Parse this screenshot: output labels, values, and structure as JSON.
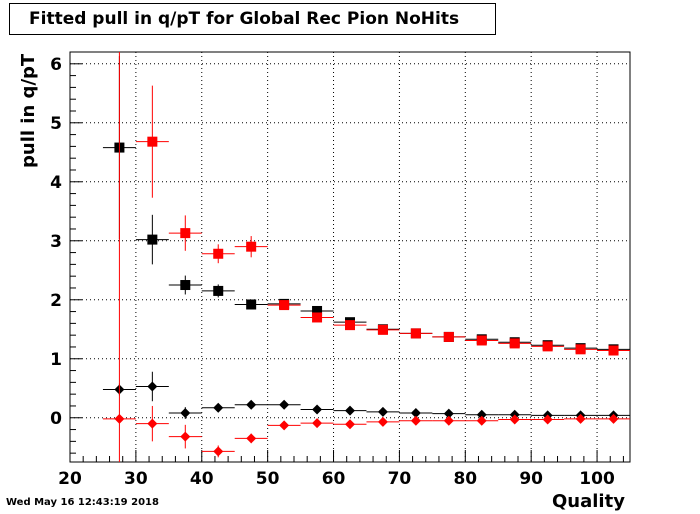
{
  "stamp": "Wed May 16 12:43:19 2018",
  "chart_data": {
    "type": "scatter",
    "title": "Fitted pull in q/pT for Global Rec Pion NoHits",
    "xlabel": "Quality",
    "ylabel": "pull in q/pT",
    "xlim": [
      20,
      105
    ],
    "ylim": [
      -0.75,
      6.2
    ],
    "x_ticks": [
      20,
      30,
      40,
      50,
      60,
      70,
      80,
      90,
      100
    ],
    "y_ticks": [
      0,
      1,
      2,
      3,
      4,
      5,
      6
    ],
    "grid": true,
    "bin_half_width": 2.5,
    "series": [
      {
        "marker": "square",
        "color": "#000000",
        "x": [
          27.5,
          32.5,
          37.5,
          42.5,
          47.5,
          52.5,
          57.5,
          62.5,
          67.5,
          72.5,
          77.5,
          82.5,
          87.5,
          92.5,
          97.5,
          102.5
        ],
        "y": [
          4.58,
          3.02,
          2.25,
          2.15,
          1.92,
          1.93,
          1.81,
          1.62,
          1.5,
          1.43,
          1.37,
          1.33,
          1.28,
          1.23,
          1.18,
          1.16
        ],
        "err": [
          1.55,
          0.42,
          0.16,
          0.11,
          0.06,
          0.04,
          0.04,
          0.03,
          0.02,
          0.02,
          0.02,
          0.02,
          0.02,
          0.02,
          0.02,
          0.02
        ]
      },
      {
        "marker": "square",
        "color": "#ff0000",
        "x": [
          32.5,
          37.5,
          42.5,
          47.5,
          52.5,
          57.5,
          62.5,
          67.5,
          72.5,
          77.5,
          82.5,
          87.5,
          92.5,
          97.5,
          102.5
        ],
        "y": [
          4.68,
          3.13,
          2.78,
          2.9,
          1.91,
          1.7,
          1.57,
          1.49,
          1.43,
          1.37,
          1.31,
          1.26,
          1.21,
          1.16,
          1.14
        ],
        "err": [
          0.95,
          0.3,
          0.16,
          0.18,
          0.06,
          0.05,
          0.04,
          0.03,
          0.02,
          0.02,
          0.02,
          0.02,
          0.02,
          0.02,
          0.02
        ]
      },
      {
        "marker": "diamond",
        "color": "#000000",
        "x": [
          27.5,
          32.5,
          37.5,
          42.5,
          47.5,
          52.5,
          57.5,
          62.5,
          67.5,
          72.5,
          77.5,
          82.5,
          87.5,
          92.5,
          97.5,
          102.5
        ],
        "y": [
          0.48,
          0.53,
          0.08,
          0.17,
          0.22,
          0.22,
          0.14,
          0.12,
          0.1,
          0.08,
          0.07,
          0.05,
          0.05,
          0.04,
          0.04,
          0.04
        ],
        "err": [
          0.1,
          0.25,
          0.1,
          0.06,
          0.04,
          0.03,
          0.02,
          0.02,
          0.02,
          0.02,
          0.02,
          0.02,
          0.02,
          0.02,
          0.02,
          0.02
        ]
      },
      {
        "marker": "diamond",
        "color": "#ff0000",
        "x": [
          27.5,
          32.5,
          37.5,
          42.5,
          47.5,
          52.5,
          57.5,
          62.5,
          67.5,
          72.5,
          77.5,
          82.5,
          87.5,
          92.5,
          97.5,
          102.5
        ],
        "y": [
          -0.02,
          -0.1,
          -0.32,
          -0.57,
          -0.35,
          -0.13,
          -0.09,
          -0.11,
          -0.07,
          -0.05,
          -0.05,
          -0.05,
          -0.03,
          -0.03,
          -0.02,
          -0.02
        ],
        "err": [
          6.4,
          0.3,
          0.2,
          0.1,
          0.08,
          0.04,
          0.04,
          0.03,
          0.02,
          0.02,
          0.02,
          0.02,
          0.02,
          0.02,
          0.02,
          0.02
        ]
      }
    ]
  }
}
